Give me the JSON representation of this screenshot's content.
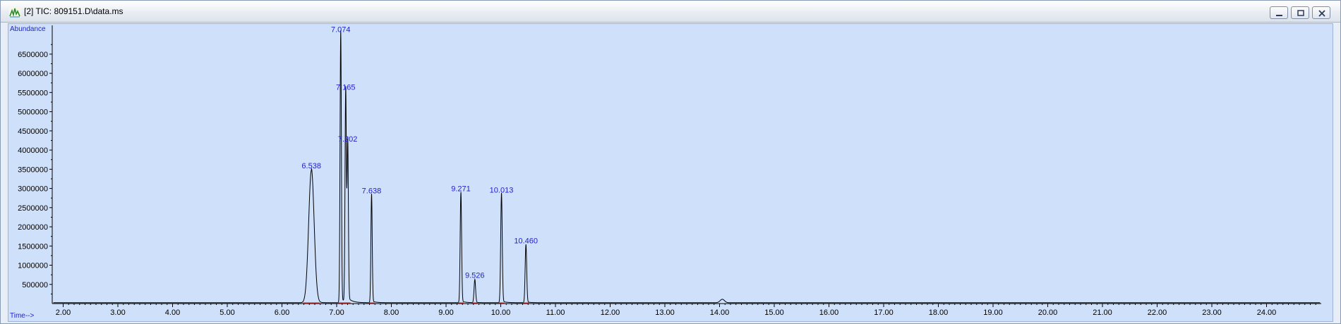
{
  "window": {
    "title": "[2] TIC: 809151.D\\data.ms",
    "icon": "chromatogram-app-icon",
    "controls": [
      "minimize-icon",
      "restore-icon",
      "close-icon"
    ]
  },
  "chart_data": {
    "type": "line",
    "title": "[2] TIC: 809151.D\\data.ms",
    "ylabel": "Abundance",
    "xlabel": "Time-->",
    "xlim": [
      1.8,
      25.0
    ],
    "ylim": [
      0,
      7250000
    ],
    "x_ticks": [
      "2.00",
      "3.00",
      "4.00",
      "5.00",
      "6.00",
      "7.00",
      "8.00",
      "9.00",
      "10.00",
      "11.00",
      "12.00",
      "13.00",
      "14.00",
      "15.00",
      "16.00",
      "17.00",
      "18.00",
      "19.00",
      "20.00",
      "21.00",
      "22.00",
      "23.00",
      "24.00"
    ],
    "y_ticks": [
      "500000",
      "1000000",
      "1500000",
      "2000000",
      "2500000",
      "3000000",
      "3500000",
      "4000000",
      "4500000",
      "5000000",
      "5500000",
      "6000000",
      "6500000"
    ],
    "peaks": [
      {
        "rt": 6.538,
        "label": "6.538",
        "height": 3450000,
        "width": 0.05
      },
      {
        "rt": 7.074,
        "label": "7.074",
        "height": 7000000,
        "width": 0.012
      },
      {
        "rt": 7.165,
        "label": "7.165",
        "height": 5500000,
        "width": 0.012
      },
      {
        "rt": 7.202,
        "label": "7.202",
        "height": 4150000,
        "width": 0.012
      },
      {
        "rt": 7.638,
        "label": "7.638",
        "height": 2800000,
        "width": 0.012
      },
      {
        "rt": 9.271,
        "label": "9.271",
        "height": 2850000,
        "width": 0.013
      },
      {
        "rt": 9.526,
        "label": "9.526",
        "height": 600000,
        "width": 0.014
      },
      {
        "rt": 10.013,
        "label": "10.013",
        "height": 2820000,
        "width": 0.014
      },
      {
        "rt": 10.46,
        "label": "10.460",
        "height": 1500000,
        "width": 0.014
      }
    ],
    "minor_features": [
      {
        "rt": 14.05,
        "height": 90000,
        "width": 0.04
      }
    ],
    "grid": false,
    "legend": "none"
  }
}
